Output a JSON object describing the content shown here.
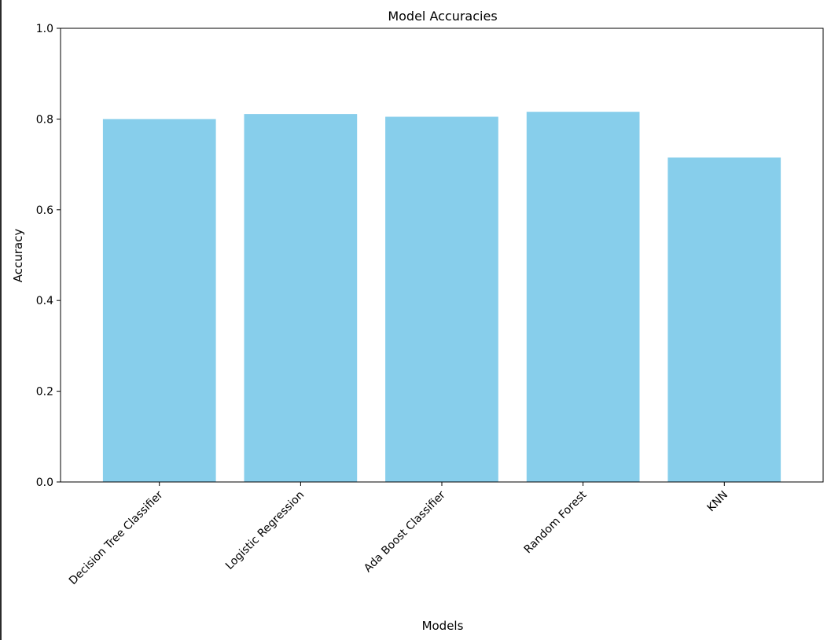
{
  "chart_data": {
    "type": "bar",
    "title": "Model Accuracies",
    "xlabel": "Models",
    "ylabel": "Accuracy",
    "categories": [
      "Decision Tree Classifier",
      "Logistic Regression",
      "Ada Boost Classifier",
      "Random Forest",
      "KNN"
    ],
    "values": [
      0.8,
      0.811,
      0.805,
      0.816,
      0.715
    ],
    "ylim": [
      0,
      1.0
    ],
    "yticks": [
      "0.0",
      "0.2",
      "0.4",
      "0.6",
      "0.8",
      "1.0"
    ],
    "grid": false,
    "legend": "none",
    "bar_color": "#87CEEB",
    "axis_color": "#000000"
  }
}
